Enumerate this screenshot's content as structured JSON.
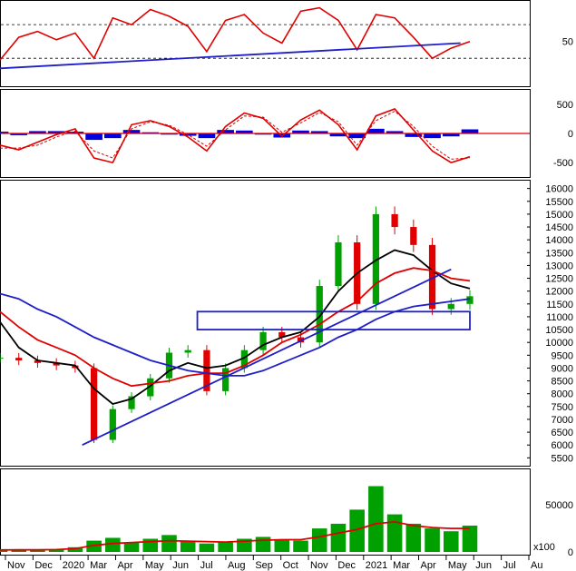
{
  "chart_data": [
    {
      "type": "line",
      "panel": "rsi",
      "title": "",
      "y_ticks": [
        50
      ],
      "reference_levels": [
        30,
        70
      ],
      "ylim": [
        0,
        95
      ],
      "x": [
        0,
        0.04,
        0.08,
        0.12,
        0.16,
        0.2,
        0.24,
        0.28,
        0.32,
        0.36,
        0.4,
        0.44,
        0.48,
        0.52,
        0.56,
        0.6,
        0.64,
        0.68,
        0.72,
        0.76,
        0.8,
        0.84,
        0.88,
        0.92,
        0.96,
        1.0
      ],
      "series": [
        {
          "values": [
            28,
            55,
            62,
            52,
            60,
            30,
            78,
            70,
            88,
            80,
            68,
            38,
            75,
            82,
            60,
            48,
            86,
            90,
            75,
            40,
            82,
            78,
            55,
            30,
            42,
            50
          ],
          "color": "#e00000"
        }
      ],
      "trendlines": [
        {
          "x": [
            0,
            0.98
          ],
          "y": [
            18,
            48
          ],
          "color": "#1f1fc8"
        }
      ]
    },
    {
      "type": "area",
      "panel": "macd",
      "y_ticks": [
        500,
        0,
        -500
      ],
      "ylim": [
        -700,
        700
      ],
      "x": [
        0,
        0.04,
        0.08,
        0.12,
        0.16,
        0.2,
        0.24,
        0.28,
        0.32,
        0.36,
        0.4,
        0.44,
        0.48,
        0.52,
        0.56,
        0.6,
        0.64,
        0.68,
        0.72,
        0.76,
        0.8,
        0.84,
        0.88,
        0.92,
        0.96,
        1.0
      ],
      "series": [
        {
          "values": [
            -200,
            -280,
            -150,
            -20,
            80,
            -420,
            -500,
            150,
            220,
            120,
            -60,
            -300,
            120,
            350,
            260,
            -50,
            230,
            400,
            150,
            -280,
            300,
            420,
            60,
            -300,
            -500,
            -400
          ],
          "color": "#e00000",
          "style": "line"
        },
        {
          "values": [
            -250,
            -250,
            -200,
            -60,
            40,
            -300,
            -420,
            80,
            200,
            140,
            -20,
            -220,
            60,
            300,
            280,
            20,
            180,
            360,
            200,
            -200,
            220,
            380,
            120,
            -220,
            -440,
            -420
          ],
          "color": "#e00000",
          "style": "dashed"
        },
        {
          "values": [
            30,
            -30,
            40,
            40,
            30,
            -110,
            -80,
            60,
            20,
            -20,
            -40,
            -80,
            60,
            50,
            -20,
            -70,
            50,
            40,
            -50,
            -80,
            80,
            40,
            -60,
            -80,
            -50,
            70
          ],
          "color": "#0000e0",
          "style": "histogram"
        }
      ]
    },
    {
      "type": "candlestick",
      "panel": "price",
      "y_ticks": [
        5500,
        6000,
        6500,
        7000,
        7500,
        8000,
        8500,
        9000,
        9500,
        10000,
        10500,
        11000,
        11500,
        12000,
        12500,
        13000,
        13500,
        14000,
        14500,
        15000,
        15500,
        16000
      ],
      "ylim": [
        5300,
        16200
      ],
      "x_ticks": [
        "Nov",
        "Dec",
        "2020",
        "Mar",
        "Apr",
        "May",
        "Jun",
        "Jul",
        "Aug",
        "Sep",
        "Oct",
        "Nov",
        "Dec",
        "2021",
        "Mar",
        "Apr",
        "May",
        "Jun",
        "Jul",
        "Au"
      ],
      "x": [
        0,
        0.04,
        0.08,
        0.12,
        0.16,
        0.2,
        0.24,
        0.28,
        0.32,
        0.36,
        0.4,
        0.44,
        0.48,
        0.52,
        0.56,
        0.6,
        0.64,
        0.68,
        0.72,
        0.76,
        0.8,
        0.84,
        0.88,
        0.92,
        0.96,
        1.0
      ],
      "close": [
        9400,
        9300,
        9200,
        9100,
        9000,
        6200,
        7400,
        7900,
        8600,
        9600,
        9700,
        8100,
        9000,
        9700,
        10400,
        10200,
        10000,
        12200,
        13900,
        11500,
        15000,
        14500,
        13800,
        11300,
        11500,
        11800
      ],
      "series": [
        {
          "name": "MA20",
          "values": [
            10800,
            9800,
            9300,
            9200,
            9100,
            8200,
            7600,
            7800,
            8300,
            8900,
            9200,
            9000,
            9100,
            9400,
            9900,
            10200,
            10400,
            11000,
            12000,
            12700,
            13200,
            13600,
            13400,
            12800,
            12300,
            12100
          ],
          "color": "#000000"
        },
        {
          "name": "MA50",
          "values": [
            11200,
            10600,
            10100,
            9800,
            9500,
            9000,
            8600,
            8300,
            8400,
            8500,
            8700,
            8800,
            8800,
            9100,
            9500,
            10000,
            10300,
            10700,
            11200,
            11600,
            12300,
            12700,
            12900,
            12800,
            12500,
            12400
          ],
          "color": "#e00000"
        },
        {
          "name": "MA200",
          "values": [
            11900,
            11700,
            11300,
            11000,
            10600,
            10200,
            9900,
            9600,
            9300,
            9100,
            8900,
            8800,
            8700,
            8700,
            8900,
            9200,
            9500,
            9800,
            10200,
            10500,
            10900,
            11200,
            11400,
            11500,
            11600,
            11700
          ],
          "color": "#1f1fc8"
        }
      ],
      "trendlines": [
        {
          "x": [
            0.175,
            0.96
          ],
          "y": [
            6000,
            12850
          ],
          "color": "#1f1fc8"
        }
      ],
      "boxes": [
        {
          "x": [
            0.42,
            1.0
          ],
          "y": [
            10500,
            11200
          ],
          "color": "#1f1fc8"
        }
      ]
    },
    {
      "type": "bar",
      "panel": "volume",
      "y_ticks": [
        50000,
        0
      ],
      "unit": "x100",
      "ylim": [
        0,
        85000
      ],
      "x": [
        0,
        0.04,
        0.08,
        0.12,
        0.16,
        0.2,
        0.24,
        0.28,
        0.32,
        0.36,
        0.4,
        0.44,
        0.48,
        0.52,
        0.56,
        0.6,
        0.64,
        0.68,
        0.72,
        0.76,
        0.8,
        0.84,
        0.88,
        0.92,
        0.96,
        1.0
      ],
      "values": [
        3000,
        2500,
        2000,
        2500,
        5000,
        12000,
        15000,
        10000,
        14000,
        18000,
        12000,
        9000,
        11000,
        14000,
        16000,
        13000,
        12000,
        25000,
        30000,
        45000,
        70000,
        40000,
        30000,
        25000,
        22000,
        28000
      ],
      "series": [
        {
          "name": "Volume MA",
          "values": [
            2000,
            2200,
            2200,
            2500,
            3500,
            7000,
            9000,
            10000,
            11000,
            12000,
            11500,
            11000,
            10500,
            11500,
            12500,
            13000,
            13000,
            16000,
            20000,
            24000,
            30000,
            32000,
            28000,
            26000,
            25000,
            25000
          ],
          "color": "#e00000"
        }
      ],
      "bar_color": "#00a000"
    }
  ]
}
